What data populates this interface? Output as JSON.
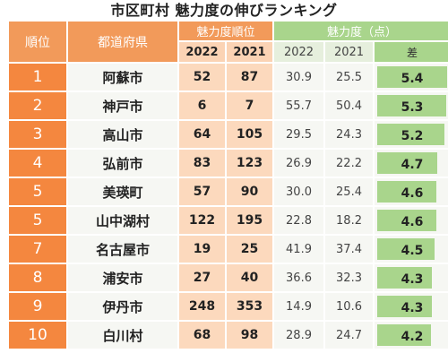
{
  "title": "市区町村 魅力度の伸びランキング",
  "headers": {
    "rank": "順位",
    "prefecture": "都道府県",
    "rank_group": "魅力度順位",
    "score_group": "魅力度（点）",
    "year_a": "2022",
    "year_b": "2021",
    "diff": "差"
  },
  "chart_data": {
    "type": "table",
    "title": "市区町村 魅力度の伸びランキング",
    "columns": [
      "順位",
      "都道府県",
      "魅力度順位 2022",
      "魅力度順位 2021",
      "魅力度（点） 2022",
      "魅力度（点） 2021",
      "差"
    ],
    "rows": [
      {
        "rank": "1",
        "name": "阿蘇市",
        "rank2022": "52",
        "rank2021": "87",
        "score2022": "30.9",
        "score2021": "25.5",
        "diff": "5.4",
        "diff_value": 5.4
      },
      {
        "rank": "2",
        "name": "神戸市",
        "rank2022": "6",
        "rank2021": "7",
        "score2022": "55.7",
        "score2021": "50.4",
        "diff": "5.3",
        "diff_value": 5.3
      },
      {
        "rank": "3",
        "name": "高山市",
        "rank2022": "64",
        "rank2021": "105",
        "score2022": "29.5",
        "score2021": "24.3",
        "diff": "5.2",
        "diff_value": 5.2
      },
      {
        "rank": "4",
        "name": "弘前市",
        "rank2022": "83",
        "rank2021": "123",
        "score2022": "26.9",
        "score2021": "22.2",
        "diff": "4.7",
        "diff_value": 4.7
      },
      {
        "rank": "5",
        "name": "美瑛町",
        "rank2022": "57",
        "rank2021": "90",
        "score2022": "30.0",
        "score2021": "25.4",
        "diff": "4.6",
        "diff_value": 4.6
      },
      {
        "rank": "5",
        "name": "山中湖村",
        "rank2022": "122",
        "rank2021": "195",
        "score2022": "22.8",
        "score2021": "18.2",
        "diff": "4.6",
        "diff_value": 4.6
      },
      {
        "rank": "7",
        "name": "名古屋市",
        "rank2022": "19",
        "rank2021": "25",
        "score2022": "41.9",
        "score2021": "37.4",
        "diff": "4.5",
        "diff_value": 4.5
      },
      {
        "rank": "8",
        "name": "浦安市",
        "rank2022": "27",
        "rank2021": "40",
        "score2022": "36.6",
        "score2021": "32.3",
        "diff": "4.3",
        "diff_value": 4.3
      },
      {
        "rank": "9",
        "name": "伊丹市",
        "rank2022": "248",
        "rank2021": "353",
        "score2022": "14.9",
        "score2021": "10.6",
        "diff": "4.3",
        "diff_value": 4.3
      },
      {
        "rank": "10",
        "name": "白川村",
        "rank2022": "68",
        "rank2021": "98",
        "score2022": "28.9",
        "score2021": "24.7",
        "diff": "4.2",
        "diff_value": 4.2
      }
    ],
    "diff_bar_max": 5.4
  },
  "colors": {
    "rank_cell": "#f4873f",
    "header_orange": "#f29a5a",
    "rank_value_cell": "#fcd9bd",
    "header_green": "#a9d58c",
    "diff_bar": "#a9d58c",
    "body_cell": "#f6f7f3"
  }
}
